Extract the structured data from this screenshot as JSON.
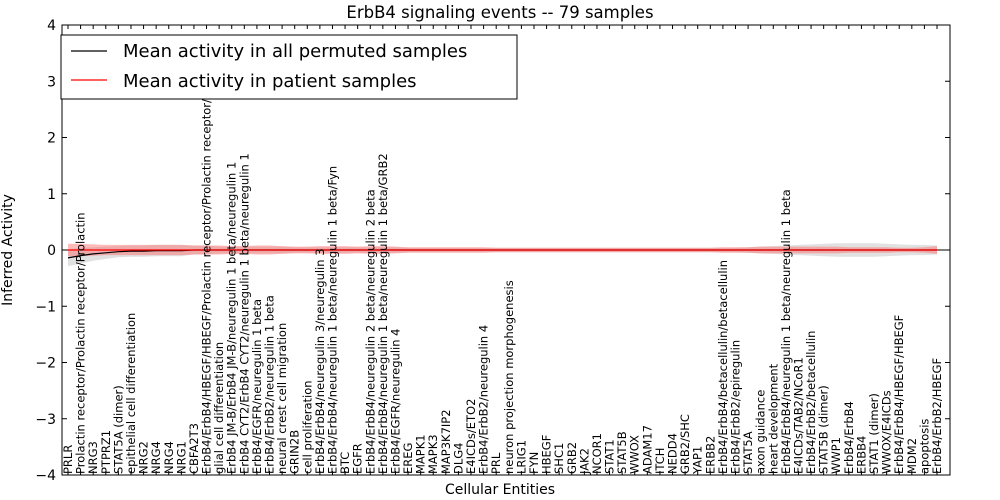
{
  "chart_data": {
    "type": "line",
    "title": "ErbB4 signaling events -- 79 samples",
    "xlabel": "Cellular Entities",
    "ylabel": "Inferred Activity",
    "ylim": [
      -4,
      4
    ],
    "yticks": [
      "4",
      "3",
      "2",
      "1",
      "0",
      "−1",
      "−2",
      "−3",
      "−4"
    ],
    "legend_position": "top-left",
    "categories": [
      "PRLR",
      "Prolactin receptor/Prolactin receptor/Prolactin",
      "NRG3",
      "PTPRZ1",
      "STAT5A (dimer)",
      "epithelial cell differentiation",
      "NRG2",
      "NRG4",
      "NRG4",
      "NRG1",
      "CBFA2T3",
      "ErbB4/ErbB4/HBEGF/HBEGF/Prolactin receptor/Prolactin receptor/Prolactin",
      "glial cell differentiation",
      "ErbB4 JM-B/ErbB4 JM-B/neuregulin 1 beta/neuregulin 1",
      "ErbB4 CYT2/ErbB4 CYT2/neuregulin 1 beta/neuregulin 1",
      "ErbB4/EGFR/neuregulin 1 beta",
      "ErbB4/ErbB2/neuregulin 1 beta",
      "neural crest cell migration",
      "GRIN2B",
      "cell proliferation",
      "ErbB4/ErbB4/neuregulin 3/neuregulin 3",
      "ErbB4/ErbB4/neuregulin 1 beta/neuregulin 1 beta/Fyn",
      "BTC",
      "EGFR",
      "ErbB4/ErbB4/neuregulin 2 beta/neuregulin 2 beta",
      "ErbB4/ErbB4/neuregulin 1 beta/neuregulin 1 beta/GRB2",
      "ErbB4/EGFR/neuregulin 4",
      "EREG",
      "MAPK1",
      "MAPK3",
      "MAP3K7IP2",
      "DLG4",
      "E4ICDs/ETO2",
      "ErbB4/ErbB2/neuregulin 4",
      "PRL",
      "neuron projection morphogenesis",
      "LRIG1",
      "FYN",
      "HBEGF",
      "SHC1",
      "GRB2",
      "JAK2",
      "NCOR1",
      "STAT1",
      "STAT5B",
      "WWOX",
      "ADAM17",
      "ITCH",
      "NEDD4",
      "GRB2/SHC",
      "YAP1",
      "ERBB2",
      "ErbB4/ErbB4/betacellulin/betacellulin",
      "ErbB4/ErbB2/epiregulin",
      "STAT5A",
      "axon guidance",
      "heart development",
      "ErbB4/ErbB4/neuregulin 1 beta/neuregulin 1 beta",
      "E4ICDs/TAB2/NCoR1",
      "ErbB4/ErbB2/betacellulin",
      "STAT5B (dimer)",
      "WWP1",
      "ErbB4/ErbB4",
      "ERBB4",
      "STAT1 (dimer)",
      "WWOX/E4ICDs",
      "ErbB4/ErbB4/HBEGF/HBEGF",
      "MDM2",
      "apoptosis",
      "ErbB4/ErbB2/HBEGF"
    ],
    "series": [
      {
        "name": "Mean activity in all permuted samples",
        "color": "#000000",
        "band_color": "#c8c8c8",
        "values": [
          -0.14,
          -0.1,
          -0.07,
          -0.05,
          -0.03,
          -0.02,
          -0.02,
          -0.01,
          -0.01,
          -0.01,
          0,
          0,
          0,
          0,
          0,
          0,
          0,
          0,
          0,
          0,
          0,
          0,
          0,
          0,
          0,
          0,
          0,
          0,
          0,
          0,
          0,
          0,
          0,
          0,
          0,
          0,
          0,
          0,
          0,
          0,
          0,
          0,
          0,
          0,
          0,
          0,
          0,
          0,
          0,
          0,
          0,
          0,
          0,
          0,
          0,
          0,
          0,
          0,
          0,
          0,
          0,
          0,
          0,
          0,
          0,
          0,
          0,
          0,
          0,
          0
        ],
        "spread": [
          0.15,
          0.14,
          0.12,
          0.11,
          0.1,
          0.1,
          0.1,
          0.1,
          0.1,
          0.1,
          0.08,
          0.08,
          0.06,
          0.06,
          0.06,
          0.06,
          0.06,
          0.06,
          0.05,
          0.05,
          0.05,
          0.05,
          0.05,
          0.05,
          0.05,
          0.05,
          0.05,
          0.04,
          0.04,
          0.04,
          0.04,
          0.04,
          0.04,
          0.04,
          0.04,
          0.04,
          0.04,
          0.04,
          0.04,
          0.04,
          0.04,
          0.04,
          0.04,
          0.04,
          0.04,
          0.04,
          0.04,
          0.04,
          0.04,
          0.04,
          0.04,
          0.04,
          0.04,
          0.04,
          0.05,
          0.06,
          0.07,
          0.08,
          0.09,
          0.1,
          0.11,
          0.12,
          0.12,
          0.12,
          0.12,
          0.11,
          0.1,
          0.09,
          0.09,
          0.08
        ]
      },
      {
        "name": "Mean activity in patient samples",
        "color": "#ff0000",
        "band_color": "#ff6666",
        "values": [
          0,
          0,
          0,
          0,
          0,
          0,
          0,
          0,
          0,
          0,
          0,
          0,
          0,
          0,
          0,
          0,
          0,
          0,
          0,
          0,
          0,
          0,
          0,
          0,
          0,
          0,
          0,
          0,
          0,
          0,
          0,
          0,
          0,
          0,
          0,
          0,
          0,
          0,
          0,
          0,
          0,
          0,
          0,
          0,
          0,
          0,
          0,
          0,
          0,
          0,
          0,
          0,
          0,
          0,
          0,
          0,
          0,
          0,
          0,
          0,
          0,
          0,
          0,
          0,
          0,
          0,
          0,
          0,
          0,
          0
        ],
        "spread": [
          0.11,
          0.11,
          0.1,
          0.09,
          0.09,
          0.09,
          0.09,
          0.09,
          0.09,
          0.09,
          0.08,
          0.08,
          0.08,
          0.07,
          0.07,
          0.08,
          0.08,
          0.07,
          0.06,
          0.06,
          0.07,
          0.07,
          0.07,
          0.06,
          0.07,
          0.07,
          0.06,
          0.05,
          0.05,
          0.05,
          0.05,
          0.05,
          0.05,
          0.05,
          0.04,
          0.04,
          0.04,
          0.04,
          0.04,
          0.04,
          0.04,
          0.04,
          0.04,
          0.04,
          0.04,
          0.04,
          0.04,
          0.04,
          0.04,
          0.04,
          0.04,
          0.04,
          0.05,
          0.05,
          0.05,
          0.06,
          0.06,
          0.06,
          0.06,
          0.06,
          0.06,
          0.06,
          0.05,
          0.05,
          0.05,
          0.05,
          0.04,
          0.04,
          0.05,
          0.07
        ]
      }
    ]
  }
}
